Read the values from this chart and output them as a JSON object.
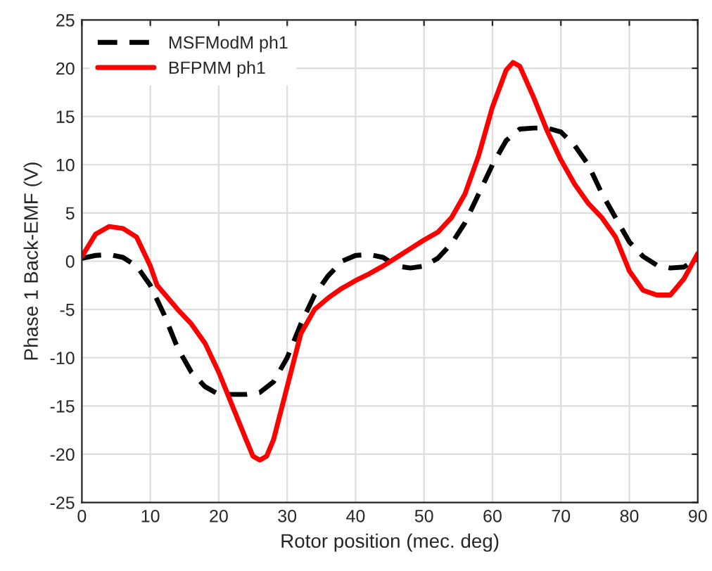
{
  "chart_data": {
    "type": "line",
    "xlabel": "Rotor position (mec. deg)",
    "ylabel": "Phase 1 Back-EMF (V)",
    "xlim": [
      0,
      90
    ],
    "xticks": [
      0,
      10,
      20,
      30,
      40,
      50,
      60,
      70,
      80,
      90
    ],
    "ylim": [
      -25,
      25
    ],
    "yticks": [
      -25,
      -20,
      -15,
      -10,
      -5,
      0,
      5,
      10,
      15,
      20,
      25
    ],
    "grid": true,
    "legend": "top left",
    "series": [
      {
        "name": "MSFModM ph1",
        "color": "#000000",
        "line_style": "dashed",
        "x": [
          0,
          2,
          4,
          6,
          8,
          10,
          12,
          14,
          16,
          18,
          20,
          22,
          24,
          26,
          28,
          30,
          32,
          34,
          36,
          38,
          40,
          42,
          44,
          46,
          48,
          50,
          52,
          54,
          56,
          58,
          60,
          62,
          64,
          66,
          68,
          70,
          72,
          74,
          76,
          78,
          80,
          82,
          84,
          86,
          88,
          90
        ],
        "values": [
          0.3,
          0.6,
          0.7,
          0.4,
          -0.5,
          -2.5,
          -5.5,
          -9,
          -11.5,
          -13,
          -13.8,
          -13.8,
          -13.8,
          -13.6,
          -12.5,
          -10,
          -6.5,
          -3.5,
          -1.5,
          0,
          0.6,
          0.7,
          0.4,
          -0.5,
          -0.7,
          -0.5,
          0.3,
          1.8,
          4,
          7,
          10,
          12.5,
          13.7,
          13.8,
          13.8,
          13.4,
          12,
          10,
          7,
          4.5,
          2,
          0.5,
          -0.4,
          -0.7,
          -0.6,
          0.4
        ]
      },
      {
        "name": "BFPMM ph1",
        "color": "#ff0000",
        "line_style": "solid",
        "x": [
          0,
          2,
          4,
          6,
          8,
          10,
          11,
          14,
          16,
          18,
          20,
          22,
          24,
          25,
          26,
          27,
          28,
          30,
          32,
          34,
          36,
          38,
          40,
          42,
          44,
          46,
          48,
          50,
          52,
          54,
          56,
          58,
          60,
          62,
          63,
          64,
          66,
          68,
          70,
          72,
          74,
          76,
          78,
          80,
          82,
          84,
          86,
          88,
          90
        ],
        "values": [
          0.5,
          2.8,
          3.6,
          3.4,
          2.5,
          -0.5,
          -2.5,
          -5,
          -6.5,
          -8.5,
          -11.5,
          -15,
          -18.5,
          -20.2,
          -20.6,
          -20.2,
          -18.5,
          -13,
          -7.5,
          -5,
          -3.8,
          -2.8,
          -2,
          -1.3,
          -0.5,
          0.4,
          1.3,
          2.2,
          3,
          4.5,
          7,
          11,
          16,
          19.8,
          20.6,
          20.2,
          17,
          13.5,
          10.5,
          8,
          6,
          4.5,
          2.5,
          -1,
          -3,
          -3.5,
          -3.5,
          -1.8,
          0.8
        ]
      }
    ]
  }
}
